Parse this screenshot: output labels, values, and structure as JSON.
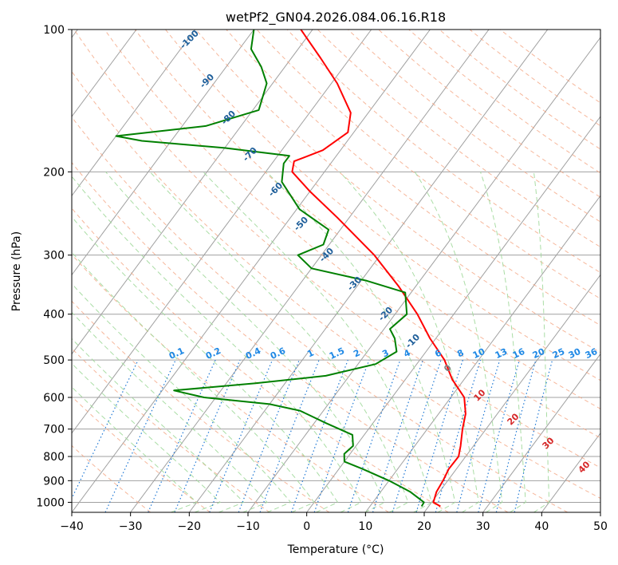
{
  "chart_data": {
    "type": "line",
    "title": "wetPf2_GN04.2026.084.06.16.R18",
    "xlabel": "Temperature (°C)",
    "ylabel": "Pressure (hPa)",
    "xlim": [
      -40,
      50
    ],
    "ylim": [
      1050,
      100
    ],
    "y_scale": "log",
    "skew": true,
    "grid": true,
    "x_ticks": [
      -40,
      -30,
      -20,
      -10,
      0,
      10,
      20,
      30,
      40,
      50
    ],
    "y_ticks": [
      1000,
      900,
      800,
      700,
      600,
      500,
      400,
      300,
      200,
      100
    ],
    "series": [
      {
        "color": "#ff0000",
        "style": "solid",
        "points": [
          {
            "p": 1020,
            "t": 22
          },
          {
            "p": 1000,
            "t": 20.3
          },
          {
            "p": 950,
            "t": 19.5
          },
          {
            "p": 900,
            "t": 19.2
          },
          {
            "p": 850,
            "t": 18.7
          },
          {
            "p": 800,
            "t": 18.8
          },
          {
            "p": 760,
            "t": 17.8
          },
          {
            "p": 700,
            "t": 16.0
          },
          {
            "p": 650,
            "t": 14.6
          },
          {
            "p": 600,
            "t": 12.3
          },
          {
            "p": 550,
            "t": 8.0
          },
          {
            "p": 500,
            "t": 4.2
          },
          {
            "p": 450,
            "t": -1.0
          },
          {
            "p": 400,
            "t": -6.2
          },
          {
            "p": 350,
            "t": -12.8
          },
          {
            "p": 300,
            "t": -21.0
          },
          {
            "p": 250,
            "t": -32.0
          },
          {
            "p": 220,
            "t": -40.0
          },
          {
            "p": 200,
            "t": -45.5
          },
          {
            "p": 190,
            "t": -46.5
          },
          {
            "p": 180,
            "t": -43.0
          },
          {
            "p": 165,
            "t": -41.0
          },
          {
            "p": 150,
            "t": -43.0
          },
          {
            "p": 130,
            "t": -49.0
          },
          {
            "p": 115,
            "t": -55.0
          },
          {
            "p": 100,
            "t": -62.0
          }
        ]
      },
      {
        "color": "#008000",
        "style": "solid",
        "points": [
          {
            "p": 1020,
            "t": 18.8
          },
          {
            "p": 1000,
            "t": 18.7
          },
          {
            "p": 950,
            "t": 15.0
          },
          {
            "p": 900,
            "t": 10.0
          },
          {
            "p": 850,
            "t": 4.0
          },
          {
            "p": 820,
            "t": 0.0
          },
          {
            "p": 790,
            "t": -1.0
          },
          {
            "p": 760,
            "t": -0.5
          },
          {
            "p": 720,
            "t": -2.0
          },
          {
            "p": 680,
            "t": -8.0
          },
          {
            "p": 640,
            "t": -14.0
          },
          {
            "p": 620,
            "t": -20.0
          },
          {
            "p": 600,
            "t": -32.0
          },
          {
            "p": 580,
            "t": -38.0
          },
          {
            "p": 560,
            "t": -25.0
          },
          {
            "p": 540,
            "t": -14.0
          },
          {
            "p": 510,
            "t": -7.0
          },
          {
            "p": 480,
            "t": -5.0
          },
          {
            "p": 450,
            "t": -7.0
          },
          {
            "p": 430,
            "t": -9.0
          },
          {
            "p": 400,
            "t": -8.0
          },
          {
            "p": 360,
            "t": -11.0
          },
          {
            "p": 340,
            "t": -19.0
          },
          {
            "p": 320,
            "t": -30.0
          },
          {
            "p": 300,
            "t": -34.0
          },
          {
            "p": 285,
            "t": -31.0
          },
          {
            "p": 265,
            "t": -32.0
          },
          {
            "p": 240,
            "t": -39.5
          },
          {
            "p": 210,
            "t": -46.0
          },
          {
            "p": 192,
            "t": -48.0
          },
          {
            "p": 185,
            "t": -48.0
          },
          {
            "p": 178,
            "t": -60.0
          },
          {
            "p": 172,
            "t": -75.0
          },
          {
            "p": 168,
            "t": -80.0
          },
          {
            "p": 160,
            "t": -66.0
          },
          {
            "p": 148,
            "t": -59.0
          },
          {
            "p": 130,
            "t": -61.0
          },
          {
            "p": 120,
            "t": -64.0
          },
          {
            "p": 110,
            "t": -68.0
          },
          {
            "p": 100,
            "t": -70.0
          }
        ]
      }
    ],
    "dry_adiabat_labels": [
      "-100",
      "-90",
      "-80",
      "-70",
      "-60",
      "-50",
      "-40",
      "-30",
      "-20",
      "-10"
    ],
    "mixing_ratio_labels": [
      "0.1",
      "0.2",
      "0.4",
      "0.6",
      "1",
      "1.5",
      "2",
      "3",
      "4",
      "6",
      "8",
      "10",
      "13",
      "16",
      "20",
      "25",
      "30",
      "36"
    ],
    "moist_adiabat_labels": [
      "0",
      "10",
      "20",
      "30",
      "40"
    ],
    "colors": {
      "temperature": "#ff0000",
      "dewpoint": "#008000",
      "isotherm": "#a0a0a0",
      "dry_adiabat": "#f4a582",
      "moist_adiabat": "#a1d99b",
      "mixing_ratio": "#1f78d4",
      "dry_adiabat_label": "#1f5f9a",
      "mixing_ratio_label": "#1e88e5",
      "moist_adiabat_label": "#d62728",
      "zero_label": "#808080"
    }
  }
}
